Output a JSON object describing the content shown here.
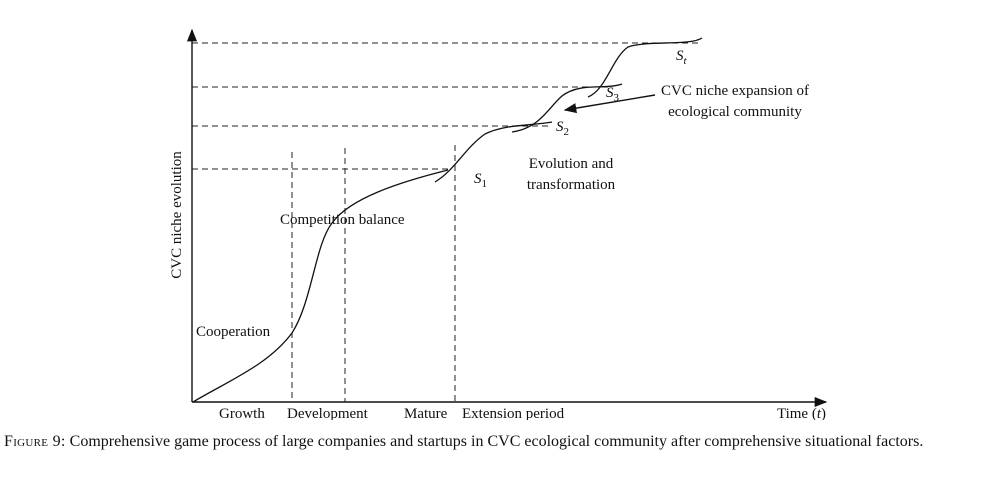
{
  "figure": {
    "y_axis_label": "CVC niche evolution",
    "x_axis_label_prefix": "Time (",
    "x_axis_label_var": "t",
    "x_axis_label_suffix": ")",
    "phases": [
      "Growth",
      "Development",
      "Mature",
      "Extension period"
    ],
    "annotations": {
      "cooperation": "Cooperation",
      "competition_balance": "Competition balance",
      "evolution_line1": "Evolution and",
      "evolution_line2": "transformation",
      "expansion_line1": "CVC niche expansion of",
      "expansion_line2": "ecological community"
    },
    "points": [
      {
        "base": "S",
        "sub": "1"
      },
      {
        "base": "S",
        "sub": "2"
      },
      {
        "base": "S",
        "sub": "3"
      },
      {
        "base": "S",
        "sub": "t"
      }
    ]
  },
  "caption": {
    "label": "Figure 9:",
    "text": "Comprehensive game process of large companies and startups in CVC ecological community after comprehensive situational factors."
  }
}
